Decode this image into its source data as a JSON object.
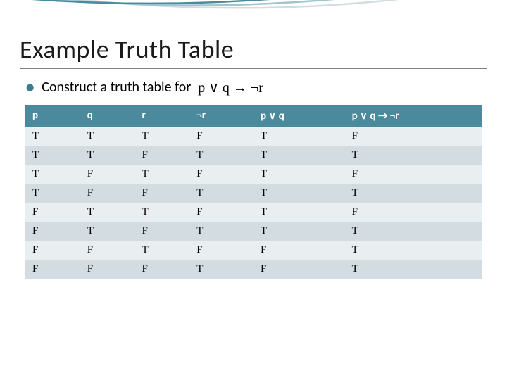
{
  "slide": {
    "title": "Example Truth Table",
    "bullet_text": "Construct a truth table for",
    "formula": "p ∨ q → ¬r"
  },
  "table": {
    "type": "table",
    "columns": [
      "p",
      "q",
      "r",
      "¬r",
      "p ∨ q",
      "p ∨ q → ¬r"
    ],
    "rows": [
      [
        "T",
        "T",
        "T",
        "F",
        "T",
        "F"
      ],
      [
        "T",
        "T",
        "F",
        "T",
        "T",
        "T"
      ],
      [
        "T",
        "F",
        "T",
        "F",
        "T",
        "F"
      ],
      [
        "T",
        "F",
        "F",
        "T",
        "T",
        "T"
      ],
      [
        "F",
        "T",
        "T",
        "F",
        "T",
        "F"
      ],
      [
        "F",
        "T",
        "F",
        "T",
        "T",
        "T"
      ],
      [
        "F",
        "F",
        "T",
        "F",
        "F",
        "T"
      ],
      [
        "F",
        "F",
        "F",
        "T",
        "F",
        "T"
      ]
    ],
    "header_background": "#4a8a9c",
    "header_text_color": "#ffffff",
    "row_light_bg": "#e9eef0",
    "row_dark_bg": "#d3dde1",
    "font_size": 15,
    "column_widths_pct": [
      12,
      12,
      12,
      14,
      20,
      30
    ]
  },
  "decoration": {
    "arc_colors": [
      "#4a8a9c",
      "#9fc5cf",
      "#d3dde1"
    ],
    "title_underline_color": "#7f7f7f",
    "bullet_color": "#3d7a8c"
  }
}
